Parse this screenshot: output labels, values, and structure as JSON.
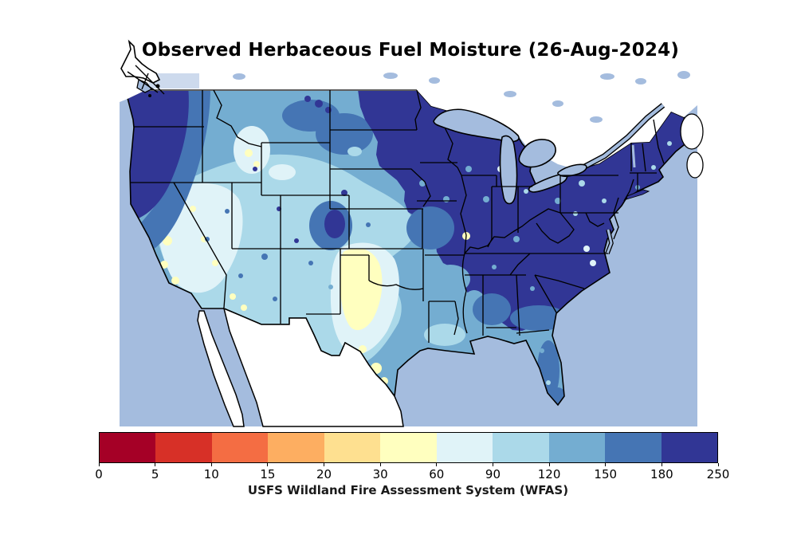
{
  "figure": {
    "title": "Observed Herbaceous Fuel Moisture (26-Aug-2024)",
    "caption": "USFS Wildland Fire Assessment System (WFAS)"
  },
  "chart_data": {
    "type": "heatmap",
    "subtype": "filled-contour-choropleth-map",
    "region": "Continental United States",
    "title": "Observed Herbaceous Fuel Moisture (26-Aug-2024)",
    "source_caption": "USFS Wildland Fire Assessment System (WFAS)",
    "date": "26-Aug-2024",
    "units": "herbaceous fuel moisture (%)",
    "legend_position": "bottom-horizontal",
    "grid": false,
    "colorbar": {
      "orientation": "horizontal",
      "levels": [
        0,
        5,
        10,
        15,
        20,
        30,
        60,
        90,
        120,
        150,
        180,
        250
      ],
      "tick_labels": [
        "0",
        "5",
        "10",
        "15",
        "20",
        "30",
        "60",
        "90",
        "120",
        "150",
        "180",
        "250"
      ],
      "segment_colors": [
        "#a50026",
        "#d73027",
        "#f46d43",
        "#fdae61",
        "#fee090",
        "#ffffbf",
        "#e0f3f8",
        "#abd9e9",
        "#74add1",
        "#4575b4",
        "#313695"
      ],
      "outline_color": "#000000"
    },
    "map_colors": {
      "ocean_and_lakes": "#a4bcde",
      "outside_us_land": "#ffffff",
      "boundaries": "#000000"
    },
    "estimated_state_values_pct": {
      "WA": "180-250",
      "OR": "120-250",
      "CA": "30-90",
      "NV": "60-90",
      "ID": "60-150",
      "MT": "90-180",
      "WY": "60-120",
      "UT": "90-150",
      "CO": "60-250",
      "AZ": "30-120",
      "NM": "90-120",
      "ND": "120-250",
      "SD": "120-180",
      "NE": "90-150",
      "KS": "60-120",
      "OK": "30-90",
      "TX": "20-90",
      "MN": "180-250",
      "IA": "150-250",
      "WI": "180-250",
      "MI": "150-250",
      "IL": "150-250",
      "IN": "180-250",
      "OH": "180-250",
      "MO": "120-250",
      "AR": "90-150",
      "LA": "60-120",
      "MS": "90-150",
      "AL": "90-180",
      "GA": "120-250",
      "FL": "90-180",
      "TN": "150-250",
      "KY": "180-250",
      "WV": "180-250",
      "VA": "180-250",
      "NC": "180-250",
      "SC": "180-250",
      "MD": "180-250",
      "DE": "180-250",
      "NJ": "180-250",
      "PA": "180-250",
      "NY": "150-250",
      "CT": "180-250",
      "RI": "180-250",
      "MA": "180-250",
      "VT": "180-250",
      "NH": "180-250",
      "ME": "180-250"
    }
  }
}
